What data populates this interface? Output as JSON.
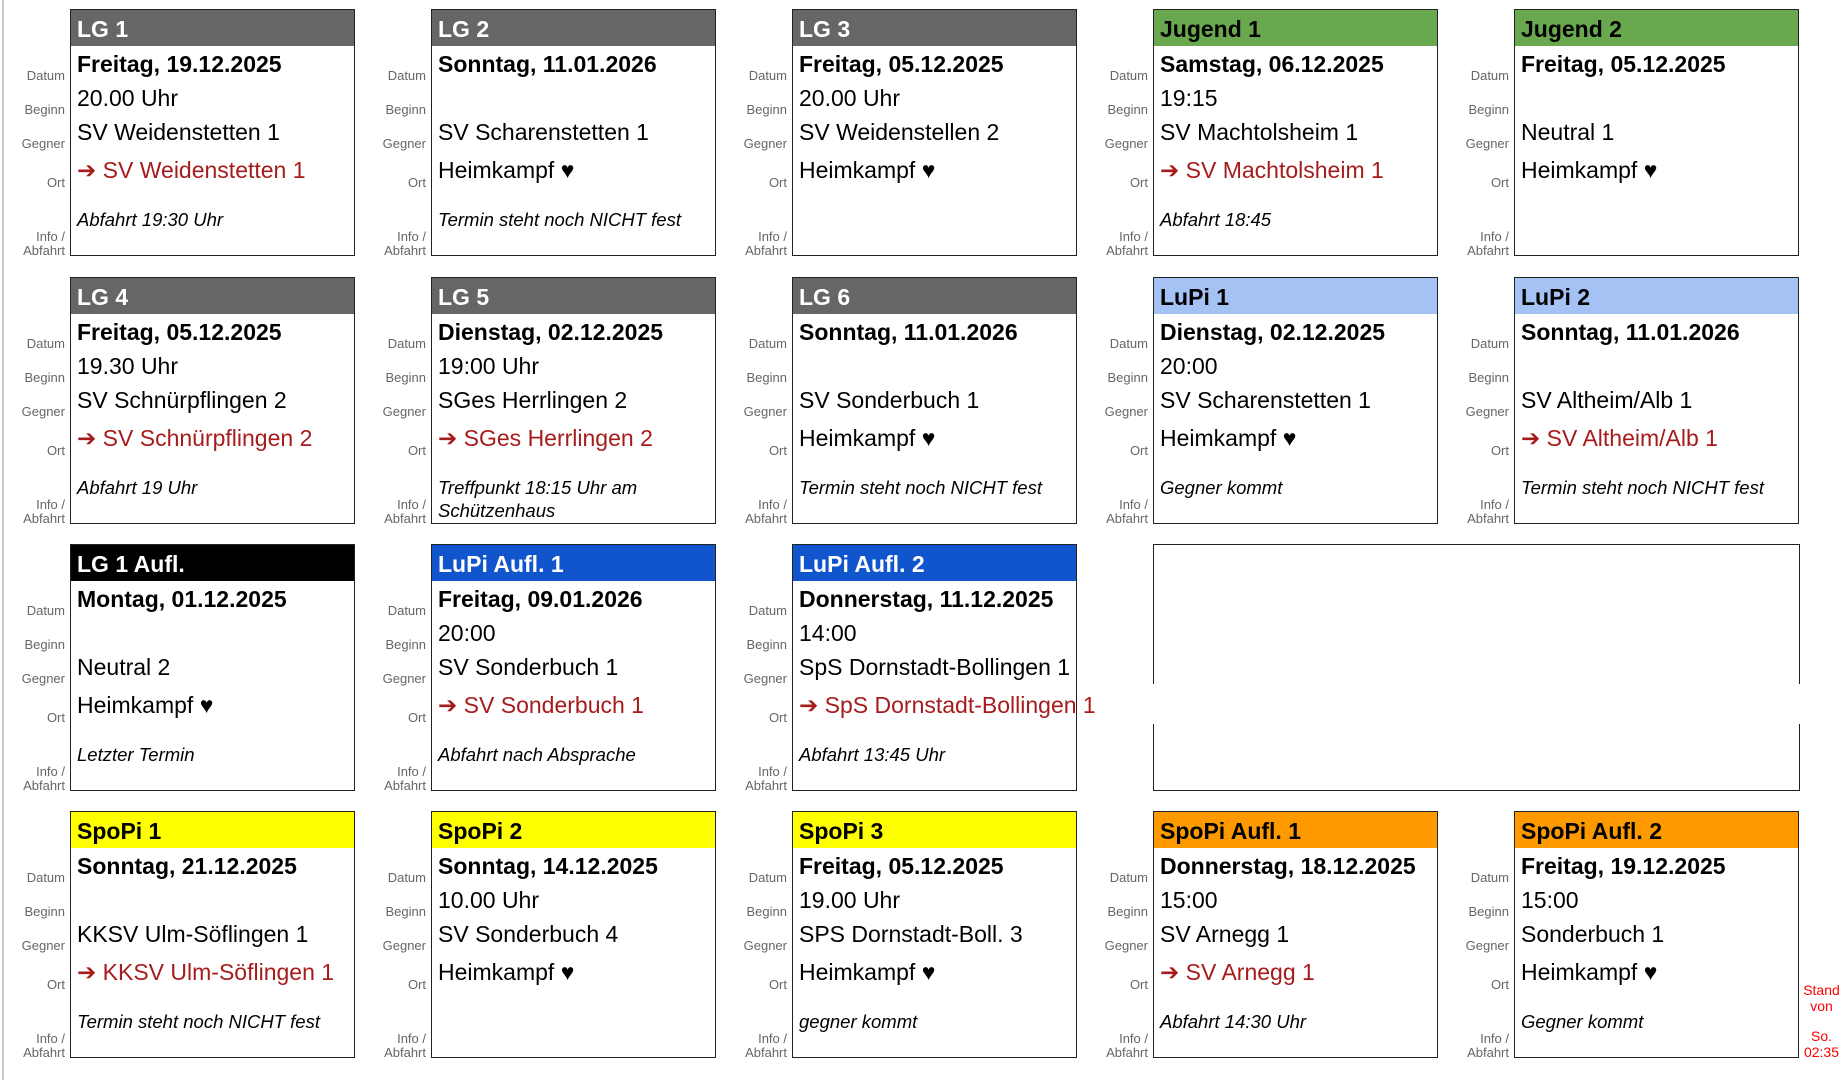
{
  "labels": {
    "datum": "Datum",
    "beginn": "Beginn",
    "gegner": "Gegner",
    "ort": "Ort",
    "info": "Info / Abfahrt"
  },
  "colors": {
    "lg": "#666666",
    "jugend": "#6aa84f",
    "lupi": "#a4c2f4",
    "lg_aufl": "#000000",
    "lupi_aufl": "#1155cc",
    "spopi": "#ffff00",
    "spopi_aufl": "#ff9900",
    "away": "#a61c1c",
    "stand": "#ff0000"
  },
  "cards": [
    {
      "title": "LG 1",
      "color": "lg",
      "title_color": "#ffffff",
      "datum": "Freitag, 19.12.2025",
      "beginn": "20.00 Uhr",
      "gegner": "SV Weidenstetten 1",
      "ort": "➔ SV Weidenstetten 1",
      "away": true,
      "info": "Abfahrt 19:30 Uhr"
    },
    {
      "title": "LG 2",
      "color": "lg",
      "title_color": "#ffffff",
      "datum": "Sonntag, 11.01.2026",
      "beginn": "",
      "gegner": "SV Scharenstetten 1",
      "ort": "Heimkampf ♥",
      "away": false,
      "info": "Termin steht noch NICHT fest"
    },
    {
      "title": "LG 3",
      "color": "lg",
      "title_color": "#ffffff",
      "datum": "Freitag, 05.12.2025",
      "beginn": "20.00 Uhr",
      "gegner": "SV Weidenstellen 2",
      "ort": "Heimkampf ♥",
      "away": false,
      "info": ""
    },
    {
      "title": "Jugend 1",
      "color": "jugend",
      "title_color": "#000000",
      "datum": "Samstag, 06.12.2025",
      "beginn": "19:15",
      "gegner": "SV Machtolsheim 1",
      "ort": "➔ SV Machtolsheim 1",
      "away": true,
      "info": "Abfahrt 18:45"
    },
    {
      "title": "Jugend 2",
      "color": "jugend",
      "title_color": "#000000",
      "datum": "Freitag, 05.12.2025",
      "beginn": "",
      "gegner": "Neutral 1",
      "ort": "Heimkampf ♥",
      "away": false,
      "info": ""
    },
    {
      "title": "LG 4",
      "color": "lg",
      "title_color": "#ffffff",
      "datum": "Freitag, 05.12.2025",
      "beginn": "19.30 Uhr",
      "gegner": "SV Schnürpflingen 2",
      "ort": "➔ SV Schnürpflingen 2",
      "away": true,
      "info": "Abfahrt 19 Uhr"
    },
    {
      "title": "LG 5",
      "color": "lg",
      "title_color": "#ffffff",
      "datum": "Dienstag, 02.12.2025",
      "beginn": "19:00 Uhr",
      "gegner": "SGes Herrlingen 2",
      "ort": "➔ SGes Herrlingen 2",
      "away": true,
      "info": "Treffpunkt 18:15 Uhr am Schützenhaus"
    },
    {
      "title": "LG 6",
      "color": "lg",
      "title_color": "#ffffff",
      "datum": "Sonntag, 11.01.2026",
      "beginn": "",
      "gegner": "SV Sonderbuch 1",
      "ort": "Heimkampf ♥",
      "away": false,
      "info": "Termin steht noch NICHT fest"
    },
    {
      "title": "LuPi 1",
      "color": "lupi",
      "title_color": "#000000",
      "datum": "Dienstag, 02.12.2025",
      "beginn": "20:00",
      "gegner": "SV Scharenstetten 1",
      "ort": "Heimkampf ♥",
      "away": false,
      "info": "Gegner kommt"
    },
    {
      "title": "LuPi 2",
      "color": "lupi",
      "title_color": "#000000",
      "datum": "Sonntag, 11.01.2026",
      "beginn": "",
      "gegner": "SV Altheim/Alb 1",
      "ort": "➔ SV Altheim/Alb 1",
      "away": true,
      "info": "Termin steht noch NICHT fest"
    },
    {
      "title": "LG 1 Aufl.",
      "color": "lg_aufl",
      "title_color": "#ffffff",
      "datum": "Montag, 01.12.2025",
      "beginn": "",
      "gegner": "Neutral 2",
      "ort": "Heimkampf ♥",
      "away": false,
      "info": "Letzter Termin"
    },
    {
      "title": "LuPi Aufl. 1",
      "color": "lupi_aufl",
      "title_color": "#ffffff",
      "datum": "Freitag, 09.01.2026",
      "beginn": "20:00",
      "gegner": "SV Sonderbuch 1",
      "ort": "➔ SV Sonderbuch 1",
      "away": true,
      "info": "Abfahrt nach Absprache"
    },
    {
      "title": "LuPi Aufl. 2",
      "color": "lupi_aufl",
      "title_color": "#ffffff",
      "datum": "Donnerstag, 11.12.2025",
      "beginn": "14:00",
      "gegner": "SpS Dornstadt-Bollingen 1",
      "ort": "➔ SpS Dornstadt-Bollingen 1",
      "away": true,
      "info": "Abfahrt 13:45 Uhr"
    },
    {
      "title": "SpoPi 1",
      "color": "spopi",
      "title_color": "#000000",
      "datum": "Sonntag, 21.12.2025",
      "beginn": "",
      "gegner": "KKSV Ulm-Söflingen 1",
      "ort": "➔ KKSV Ulm-Söflingen 1",
      "away": true,
      "info": "Termin steht noch NICHT fest"
    },
    {
      "title": "SpoPi 2",
      "color": "spopi",
      "title_color": "#000000",
      "datum": "Sonntag, 14.12.2025",
      "beginn": "10.00 Uhr",
      "gegner": "SV Sonderbuch 4",
      "ort": "Heimkampf ♥",
      "away": false,
      "info": ""
    },
    {
      "title": "SpoPi 3",
      "color": "spopi",
      "title_color": "#000000",
      "datum": "Freitag, 05.12.2025",
      "beginn": "19.00 Uhr",
      "gegner": "SPS Dornstadt-Boll. 3",
      "ort": "Heimkampf ♥",
      "away": false,
      "info": "gegner kommt"
    },
    {
      "title": "SpoPi Aufl. 1",
      "color": "spopi_aufl",
      "title_color": "#000000",
      "datum": "Donnerstag, 18.12.2025",
      "beginn": "15:00",
      "gegner": "SV Arnegg 1",
      "ort": "➔ SV Arnegg 1",
      "away": true,
      "info": "Abfahrt 14:30 Uhr"
    },
    {
      "title": "SpoPi Aufl. 2",
      "color": "spopi_aufl",
      "title_color": "#000000",
      "datum": "Freitag, 19.12.2025",
      "beginn": "15:00",
      "gegner": "Sonderbuch 1",
      "ort": "Heimkampf ♥",
      "away": false,
      "info": "Gegner kommt"
    }
  ],
  "stand": {
    "line1": "Stand von",
    "line2": "So. 02:35"
  }
}
